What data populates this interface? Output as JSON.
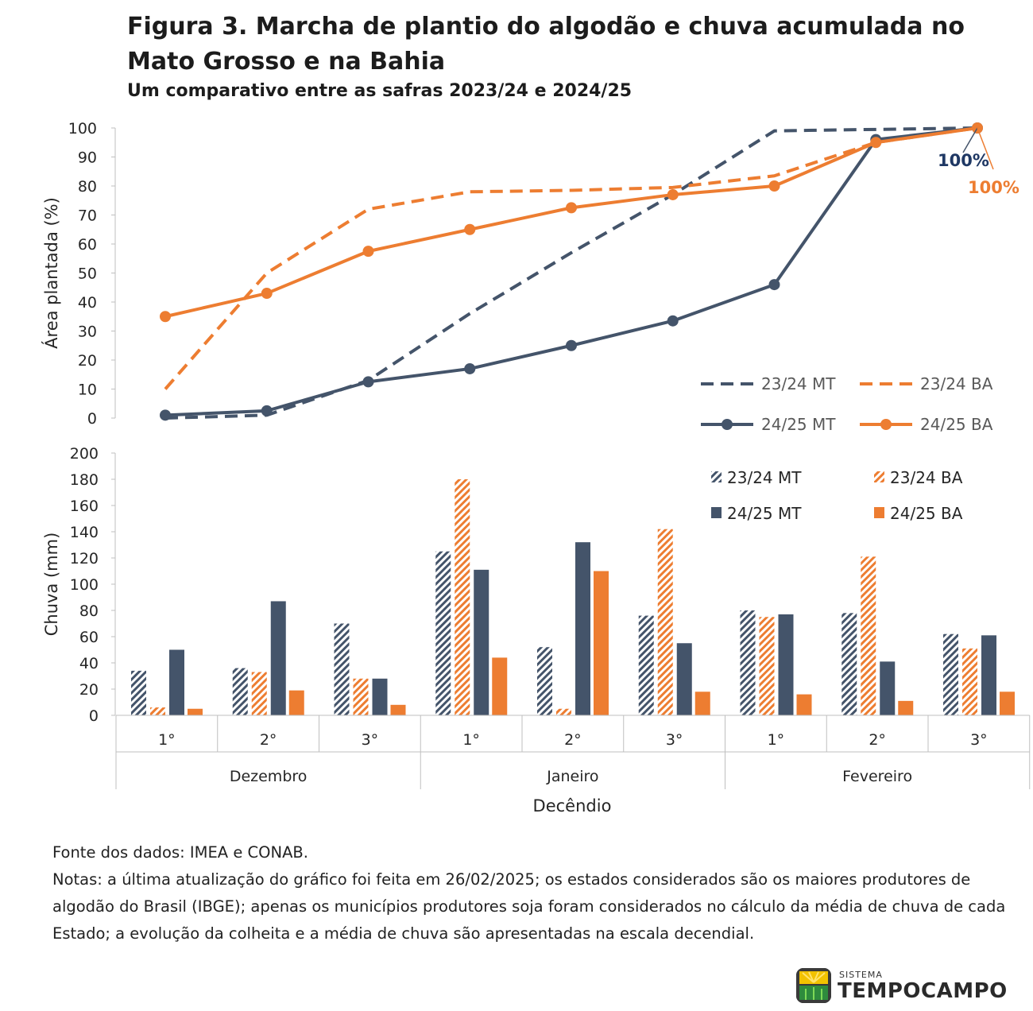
{
  "header": {
    "title": "Figura 3. Marcha de plantio do algodão e chuva acumulada no Mato Grosso e na Bahia",
    "subtitle": "Um comparativo entre as safras 2023/24 e 2024/25"
  },
  "chart_data": [
    {
      "type": "line",
      "ylabel": "Área plantada (%)",
      "ylim": [
        0,
        100
      ],
      "yticks": [
        0,
        10,
        20,
        30,
        40,
        50,
        60,
        70,
        80,
        90,
        100
      ],
      "grid": false,
      "legend_position": "bottom-right",
      "series": [
        {
          "name": "23/24 MT",
          "style": "dashed",
          "color": "#44546a",
          "values": [
            0,
            1,
            13,
            36,
            57,
            77,
            99,
            99.5,
            100
          ]
        },
        {
          "name": "23/24 BA",
          "style": "dashed",
          "color": "#ed7d31",
          "values": [
            10,
            50,
            72,
            78,
            78.5,
            79.5,
            83.5,
            95,
            100
          ]
        },
        {
          "name": "24/25 MT",
          "style": "solid-marker",
          "color": "#44546a",
          "values": [
            1,
            2.5,
            12.5,
            17,
            25,
            33.5,
            46,
            96,
            100
          ]
        },
        {
          "name": "24/25 BA",
          "style": "solid-marker",
          "color": "#ed7d31",
          "values": [
            35,
            43,
            57.5,
            65,
            72.5,
            77,
            80,
            95,
            100
          ]
        }
      ],
      "annotations": [
        {
          "text": "100%",
          "color": "#1f3864"
        },
        {
          "text": "100%",
          "color": "#ed7d31"
        }
      ]
    },
    {
      "type": "bar",
      "ylabel": "Chuva (mm)",
      "xlabel": "Decêndio",
      "ylim": [
        0,
        200
      ],
      "yticks": [
        0,
        20,
        40,
        60,
        80,
        100,
        120,
        140,
        160,
        180,
        200
      ],
      "grid": false,
      "legend_position": "top-right",
      "categories": [
        "1°",
        "2°",
        "3°",
        "1°",
        "2°",
        "3°",
        "1°",
        "2°",
        "3°"
      ],
      "groups": [
        {
          "label": "Dezembro",
          "span": 3
        },
        {
          "label": "Janeiro",
          "span": 3
        },
        {
          "label": "Fevereiro",
          "span": 3
        }
      ],
      "series": [
        {
          "name": "23/24 MT",
          "fill": "hatched",
          "color": "#44546a",
          "values": [
            34,
            36,
            70,
            125,
            52,
            76,
            80,
            78,
            62
          ]
        },
        {
          "name": "23/24 BA",
          "fill": "hatched",
          "color": "#ed7d31",
          "values": [
            6,
            33,
            28,
            180,
            5,
            142,
            75,
            121,
            51
          ]
        },
        {
          "name": "24/25 MT",
          "fill": "solid",
          "color": "#44546a",
          "values": [
            50,
            87,
            28,
            111,
            132,
            55,
            77,
            41,
            61
          ]
        },
        {
          "name": "24/25 BA",
          "fill": "solid",
          "color": "#ed7d31",
          "values": [
            5,
            19,
            8,
            44,
            110,
            18,
            16,
            11,
            18
          ]
        }
      ]
    }
  ],
  "notes": {
    "source": "Fonte dos dados: IMEA e CONAB.",
    "text": "Notas: a última atualização do gráfico foi feita em 26/02/2025; os estados considerados são os maiores produtores de algodão do Brasil (IBGE); apenas os municípios produtores soja foram considerados no cálculo da média de chuva de cada Estado; a evolução da colheita e a média de chuva são apresentadas na escala decendial."
  },
  "logo": {
    "small": "SISTEMA",
    "big": "TEMPOCAMPO"
  }
}
